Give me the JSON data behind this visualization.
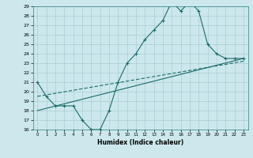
{
  "xlabel": "Humidex (Indice chaleur)",
  "ylabel": "",
  "bg_color": "#cce8ec",
  "grid_color": "#aacdd4",
  "line_color": "#1a6b6b",
  "xlim": [
    -0.5,
    23.5
  ],
  "ylim": [
    16,
    29
  ],
  "yticks": [
    16,
    17,
    18,
    19,
    20,
    21,
    22,
    23,
    24,
    25,
    26,
    27,
    28,
    29
  ],
  "xticks": [
    0,
    1,
    2,
    3,
    4,
    5,
    6,
    7,
    8,
    9,
    10,
    11,
    12,
    13,
    14,
    15,
    16,
    17,
    18,
    19,
    20,
    21,
    22,
    23
  ],
  "line1_x": [
    0,
    1,
    2,
    3,
    4,
    5,
    6,
    7,
    8,
    9,
    10,
    11,
    12,
    13,
    14,
    15,
    16,
    17,
    18,
    19,
    20,
    21,
    22,
    23
  ],
  "line1_y": [
    21,
    19.5,
    18.5,
    18.5,
    18.5,
    17,
    16,
    16,
    18,
    21,
    23,
    24,
    25.5,
    26.5,
    27.5,
    29.5,
    28.5,
    29.5,
    28.5,
    25,
    24,
    23.5,
    23.5,
    23.5
  ],
  "line2_x": [
    0,
    23
  ],
  "line2_y": [
    19.5,
    23.2
  ],
  "line3_x": [
    0,
    23
  ],
  "line3_y": [
    18.0,
    23.5
  ]
}
